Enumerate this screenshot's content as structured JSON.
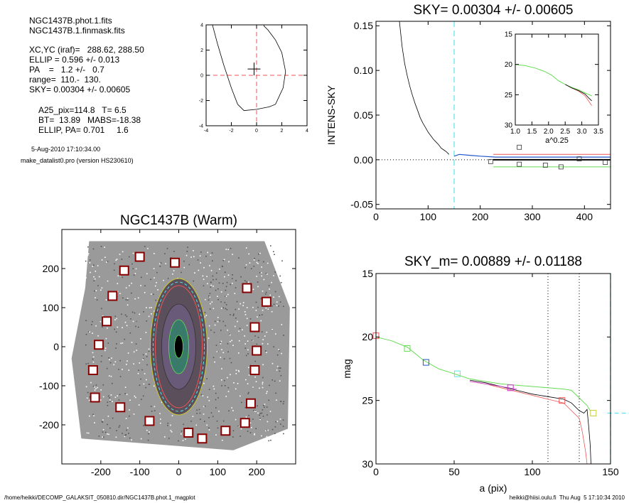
{
  "header": {
    "lines_group1": [
      "NGC1437B.phot.1.fits",
      "NGC1437B.1.finmask.fits"
    ],
    "lines_group2": [
      "XC,YC (iraf)=   288.62, 288.50",
      "ELLIP = 0.596 +/- 0.013",
      "PA    =   1.2 +/-   0.7",
      "range=  110.-  130.",
      "SKY= 0.00304 +/- 0.00605"
    ],
    "lines_group3": [
      "A25_pix=114.8   T= 6.5",
      "BT=  13.89   MABS=-18.38",
      "ELLIP, PA= 0.701     1.6"
    ],
    "date": "5-Aug-2010 17:10:34.00",
    "program": "make_datalist0.pro (version HS230610)"
  },
  "footer": {
    "path": "/home/heikki/DECOMP_GALAKSIT_050810.dir/NGC1437B.phot.1_magplot",
    "user_time": "heikki@hiisi.oulu.fi  Thu Aug  5 17:10:34 2010"
  },
  "colors": {
    "cyan": "#55e6ee",
    "red": "#ee5555",
    "green": "#66dd55",
    "blue": "#2255cc",
    "magenta": "#cc33cc",
    "yellow": "#cccc33"
  },
  "chart_data": [
    {
      "id": "center_plot",
      "type": "line",
      "xlim": [
        -4,
        4
      ],
      "ylim": [
        -4,
        4
      ],
      "xticks": [
        "-4",
        "-2",
        "0",
        "2",
        "4"
      ],
      "yticks": [
        "-4",
        "-2",
        "0",
        "2",
        "4"
      ],
      "series": [
        {
          "x": [
            -3.5,
            -3.1,
            -2.6,
            -2.0,
            -1.5
          ],
          "y": [
            4.0,
            2.5,
            0.8,
            -1.0,
            -2.3
          ]
        },
        {
          "x": [
            -1.5,
            -1.0,
            0.0,
            1.0,
            1.5
          ],
          "y": [
            -2.3,
            -2.8,
            -2.7,
            -2.5,
            -2.3
          ]
        },
        {
          "x": [
            1.5,
            2.1,
            2.3,
            2.0,
            1.5,
            0.9,
            0.6,
            0.6
          ],
          "y": [
            -2.3,
            -1.0,
            0.3,
            1.8,
            2.8,
            3.6,
            3.9,
            4.0
          ]
        }
      ],
      "marker": {
        "x": -0.2,
        "y": 0.5
      },
      "dashed_lines": {
        "x": 0,
        "y": 0
      }
    },
    {
      "id": "sky_profile",
      "type": "line",
      "title": "SKY= 0.00304 +/- 0.00605",
      "ylabel": "INTENS-SKY",
      "xlim": [
        0,
        450
      ],
      "ylim": [
        -0.055,
        0.155
      ],
      "xticks": [
        "0",
        "100",
        "200",
        "300",
        "400"
      ],
      "yticks": [
        "-0.05",
        "0.00",
        "0.05",
        "0.10",
        "0.15"
      ],
      "profile": {
        "x": [
          45,
          50,
          55,
          60,
          65,
          70,
          75,
          80,
          85,
          90,
          95,
          100,
          105,
          110,
          115,
          120,
          125,
          130,
          135,
          140
        ],
        "y": [
          0.155,
          0.127,
          0.108,
          0.094,
          0.082,
          0.072,
          0.063,
          0.055,
          0.047,
          0.041,
          0.036,
          0.031,
          0.027,
          0.023,
          0.02,
          0.017,
          0.013,
          0.011,
          0.009,
          0.006
        ]
      },
      "sky_steps": {
        "x": [
          150,
          160,
          180,
          200,
          230,
          270,
          310,
          350,
          390,
          450
        ],
        "y": [
          0.004,
          0.006,
          0.005,
          0.004,
          0.003,
          0.003,
          0.003,
          0.003,
          0.003,
          0.003
        ]
      },
      "red_line": {
        "x": [
          225,
          450
        ],
        "y": [
          0.006,
          0.006
        ]
      },
      "green_line": {
        "x": [
          225,
          450
        ],
        "y": [
          -0.008,
          -0.008
        ]
      },
      "black_line": {
        "x": [
          225,
          450
        ],
        "y": [
          0.0,
          0.0
        ]
      },
      "squares": {
        "x": [
          220,
          275,
          275,
          325,
          355,
          390,
          440
        ],
        "y": [
          -0.002,
          0.014,
          -0.005,
          -0.006,
          -0.008,
          0.001,
          -0.003
        ]
      },
      "vline_x": 150,
      "inset": {
        "xlabel": "a^0.25",
        "xlim": [
          1.0,
          3.5
        ],
        "ylim": [
          15,
          30
        ],
        "xticks": [
          "1.0",
          "1.5",
          "2.0",
          "2.5",
          "3.0",
          "3.5"
        ],
        "yticks": [
          "15",
          "20",
          "25",
          "30"
        ],
        "green": {
          "x": [
            1.0,
            1.3,
            1.6,
            1.9,
            2.1,
            2.3,
            2.5,
            2.7,
            2.9,
            3.1,
            3.3
          ],
          "y": [
            20.0,
            20.2,
            20.6,
            21.2,
            21.8,
            22.7,
            23.3,
            23.8,
            24.2,
            24.7,
            25.2
          ]
        },
        "red": {
          "x": [
            2.5,
            2.7,
            2.9,
            3.1,
            3.2,
            3.3
          ],
          "y": [
            23.3,
            23.9,
            24.4,
            25.2,
            26.0,
            26.8
          ]
        },
        "black": {
          "x": [
            2.5,
            2.7,
            2.9,
            3.1,
            3.2,
            3.3
          ],
          "y": [
            23.3,
            23.9,
            24.3,
            24.9,
            25.5,
            26.0
          ]
        }
      }
    },
    {
      "id": "image_panel",
      "type": "scatter",
      "title": "NGC1437B (Warm)",
      "xlim": [
        -300,
        300
      ],
      "ylim": [
        -300,
        300
      ],
      "xticks": [
        "-200",
        "-100",
        "0",
        "100",
        "200"
      ],
      "yticks": [
        "-200",
        "-100",
        "0",
        "100",
        "200"
      ],
      "mask_boxes": {
        "x": [
          -100,
          -10,
          -140,
          -170,
          -185,
          -205,
          -220,
          -215,
          -150,
          -75,
          25,
          60,
          120,
          170,
          185,
          195,
          200,
          195,
          175,
          225
        ],
        "y": [
          230,
          215,
          195,
          130,
          65,
          5,
          -60,
          -130,
          -155,
          -190,
          -220,
          -235,
          -215,
          -195,
          -145,
          -60,
          -10,
          50,
          150,
          115
        ]
      }
    },
    {
      "id": "mag_profile",
      "type": "line",
      "title": "SKY_m=  0.00889 +/- 0.01188",
      "xlabel": "a (pix)",
      "ylabel": "mag",
      "xlim": [
        0,
        150
      ],
      "ylim": [
        15,
        30
      ],
      "xticks": [
        "0",
        "50",
        "100",
        "150"
      ],
      "yticks": [
        "15",
        "20",
        "25",
        "30"
      ],
      "green": {
        "x": [
          0,
          10,
          20,
          30,
          40,
          50,
          60,
          70,
          80,
          90,
          100,
          110,
          120,
          125,
          130,
          135,
          137
        ],
        "y": [
          20.0,
          20.3,
          20.8,
          21.8,
          22.5,
          22.9,
          23.3,
          23.5,
          23.7,
          23.8,
          23.9,
          24.0,
          24.1,
          24.2,
          24.8,
          25.4,
          25.8
        ]
      },
      "black": {
        "x": [
          60,
          70,
          80,
          90,
          100,
          110,
          120,
          125,
          130,
          133,
          135,
          136,
          137,
          137.5
        ],
        "y": [
          23.4,
          23.6,
          23.9,
          24.2,
          24.5,
          24.7,
          24.9,
          25.2,
          25.8,
          26.0,
          25.7,
          27.0,
          28.5,
          30.0
        ]
      },
      "red": {
        "x": [
          60,
          70,
          80,
          90,
          100,
          110,
          120,
          125,
          130,
          132,
          134,
          135
        ],
        "y": [
          23.5,
          23.7,
          24.0,
          24.3,
          24.6,
          24.9,
          25.2,
          25.8,
          26.4,
          27.5,
          29.0,
          30.0
        ]
      },
      "magenta": {
        "x": [
          60,
          70,
          80,
          90
        ],
        "y": [
          23.5,
          23.7,
          23.9,
          24.1
        ]
      },
      "squares": {
        "x": [
          0,
          20,
          32,
          52,
          86,
          119,
          139
        ],
        "y": [
          19.9,
          20.9,
          22.0,
          22.9,
          24.0,
          25.0,
          26.0
        ]
      },
      "square_colors": [
        "red",
        "green",
        "blue",
        "cyan",
        "magenta",
        "red",
        "yellow"
      ],
      "vlines_dotted": [
        110,
        130
      ],
      "vline_dashed": 150,
      "hline_dashed": {
        "x": [
          148,
          162
        ],
        "y": 26.0
      }
    }
  ]
}
